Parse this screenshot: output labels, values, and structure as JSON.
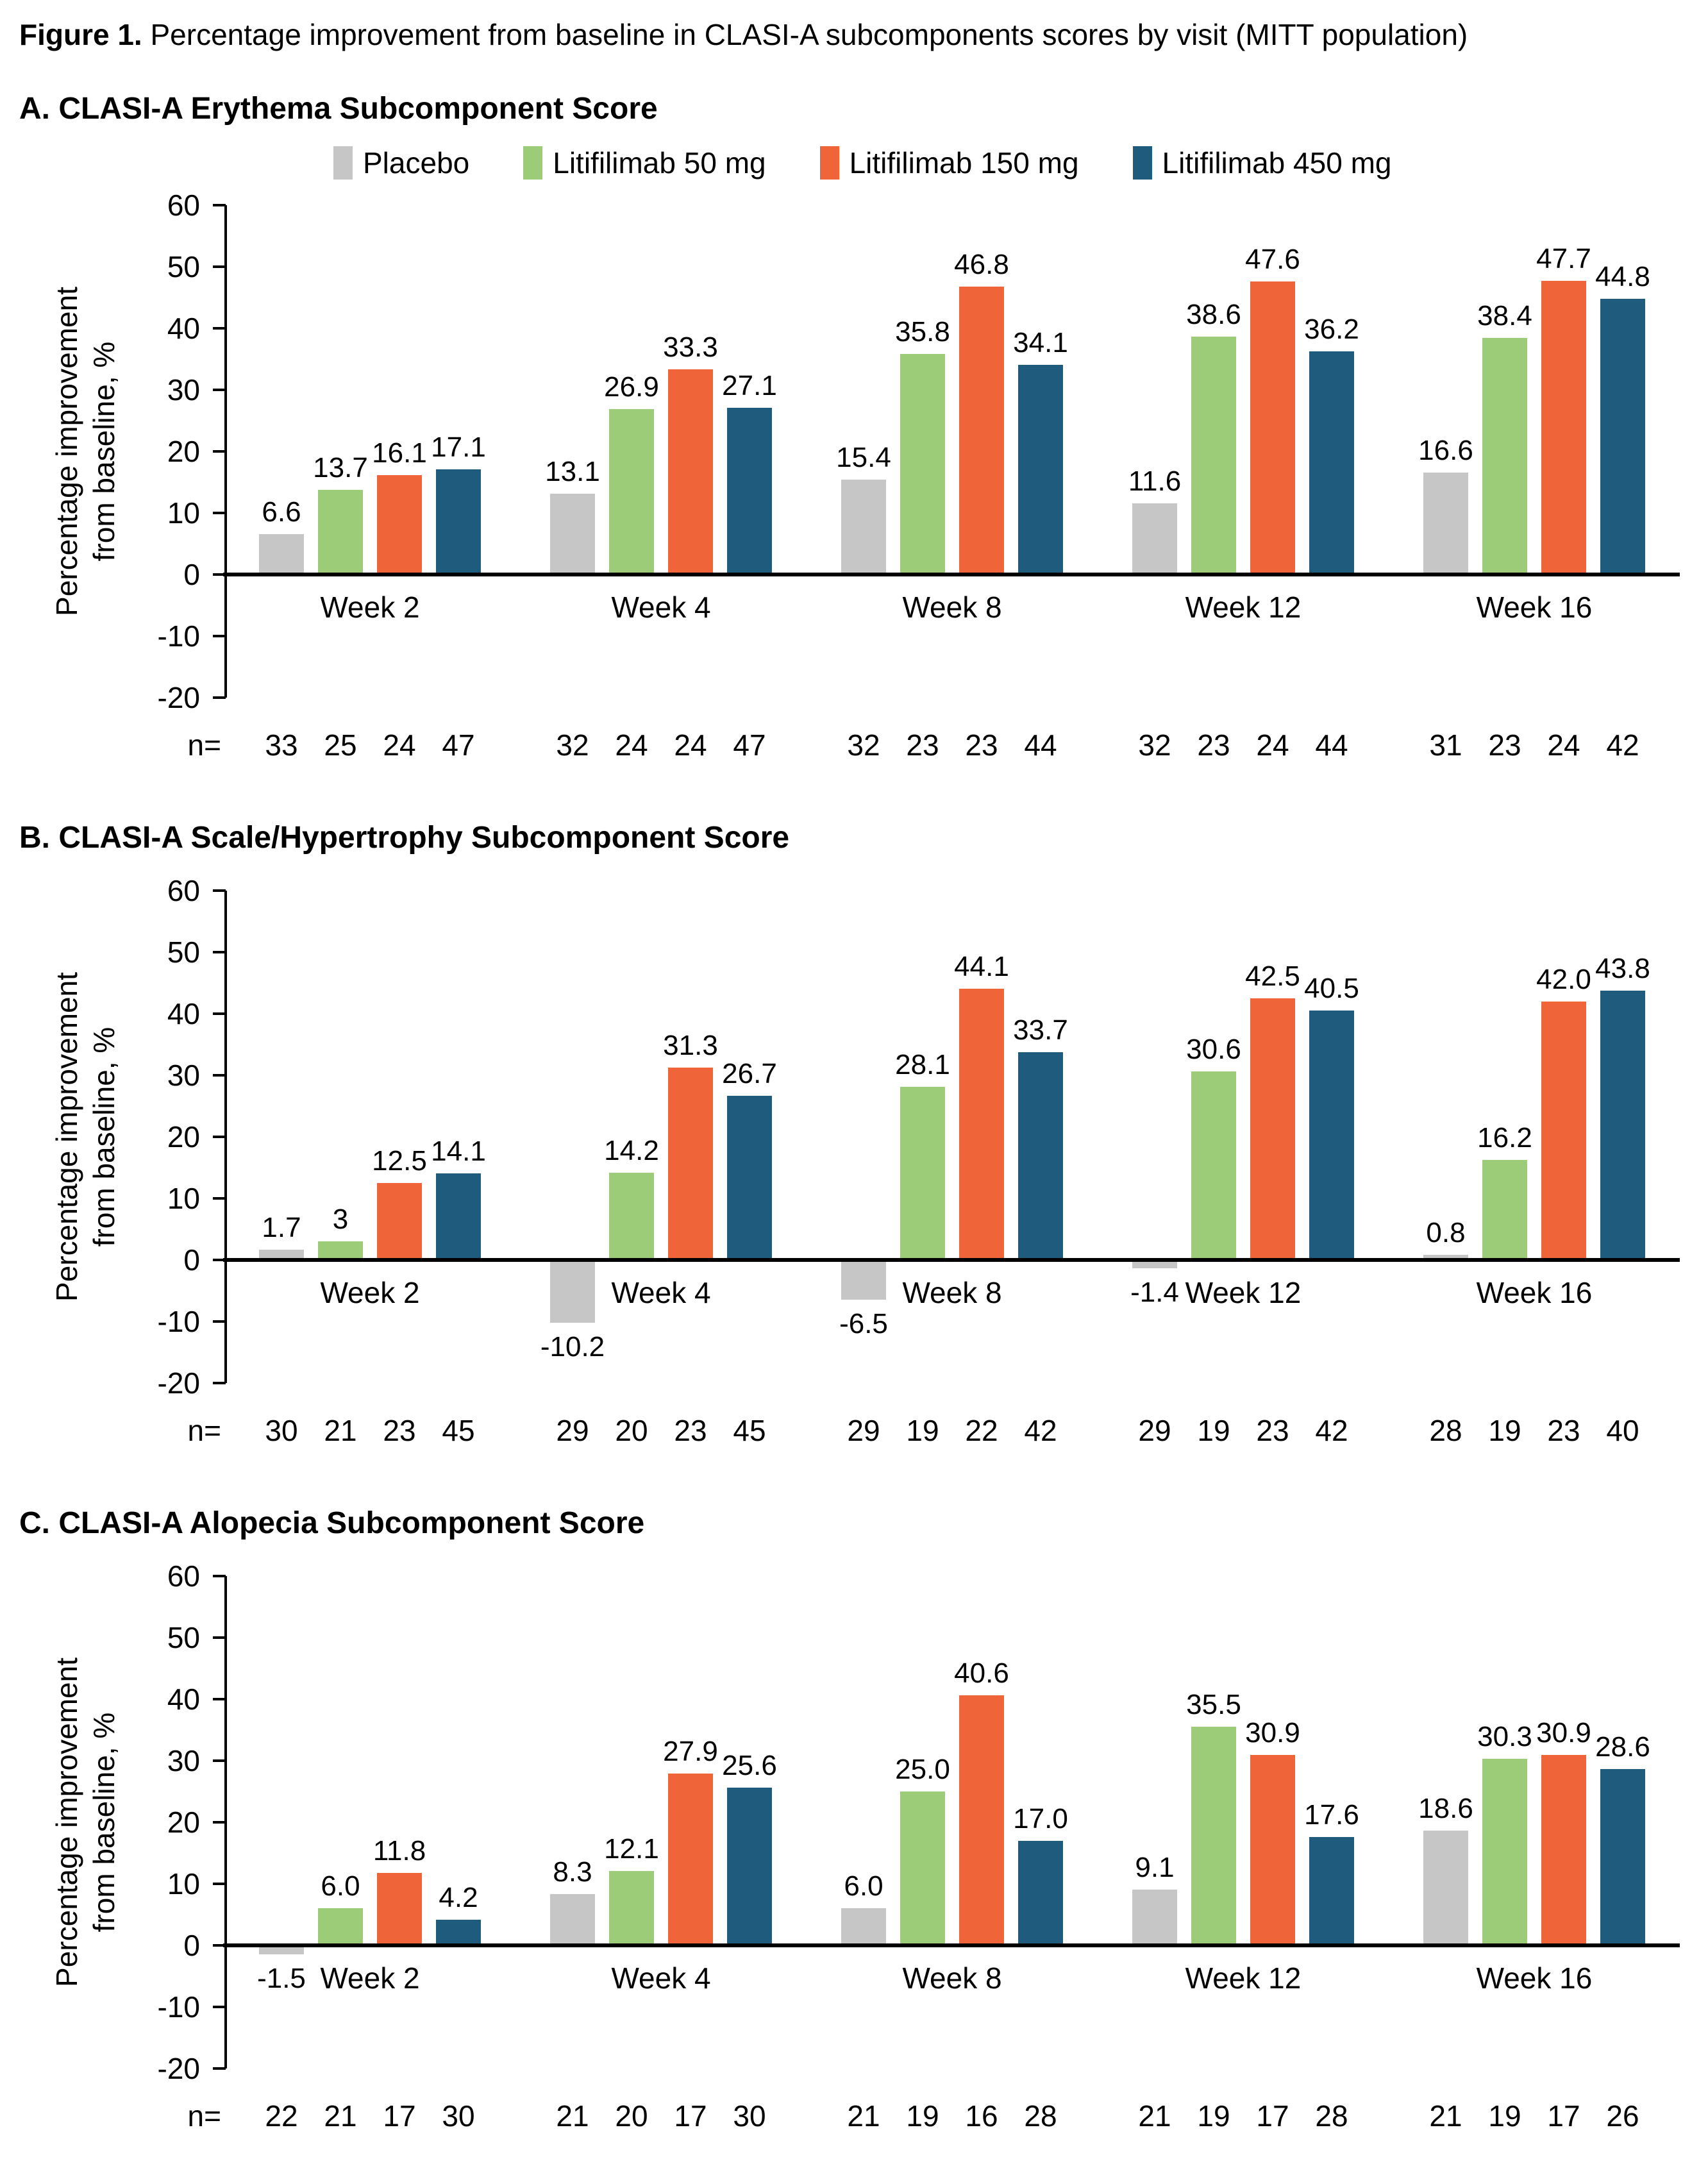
{
  "figure": {
    "title_prefix": "Figure 1.",
    "title_rest": " Percentage improvement from baseline in CLASI-A subcomponents scores by visit (MITT population)"
  },
  "legend": [
    {
      "label": "Placebo",
      "color": "#C6C6C6"
    },
    {
      "label": "Litifilimab 50 mg",
      "color": "#9CCC78"
    },
    {
      "label": "Litifilimab 150 mg",
      "color": "#EF6438"
    },
    {
      "label": "Litifilimab 450 mg",
      "color": "#1F5B7D"
    }
  ],
  "y_axis": {
    "label_line1": "Percentage improvement",
    "label_line2": "from baseline, %",
    "ticks": [
      60,
      50,
      40,
      30,
      20,
      10,
      0,
      -10,
      -20
    ],
    "max": 60,
    "min": -20,
    "grid": false
  },
  "n_prefix": "n=",
  "chart_data": [
    {
      "type": "bar",
      "title": "A. CLASI-A Erythema Subcomponent Score",
      "categories": [
        "Week 2",
        "Week 4",
        "Week 8",
        "Week 12",
        "Week 16"
      ],
      "ylim": [
        -20,
        60
      ],
      "legend_position": "top",
      "series": [
        {
          "name": "Placebo",
          "color": "#C6C6C6",
          "values": [
            6.6,
            13.1,
            15.4,
            11.6,
            16.6
          ],
          "labels": [
            "6.6",
            "13.1",
            "15.4",
            "11.6",
            "16.6"
          ]
        },
        {
          "name": "Litifilimab 50 mg",
          "color": "#9CCC78",
          "values": [
            13.7,
            26.9,
            35.8,
            38.6,
            38.4
          ],
          "labels": [
            "13.7",
            "26.9",
            "35.8",
            "38.6",
            "38.4"
          ]
        },
        {
          "name": "Litifilimab 150 mg",
          "color": "#EF6438",
          "values": [
            16.1,
            33.3,
            46.8,
            47.6,
            47.7
          ],
          "labels": [
            "16.1",
            "33.3",
            "46.8",
            "47.6",
            "47.7"
          ]
        },
        {
          "name": "Litifilimab 450 mg",
          "color": "#1F5B7D",
          "values": [
            17.1,
            27.1,
            34.1,
            36.2,
            44.8
          ],
          "labels": [
            "17.1",
            "27.1",
            "34.1",
            "36.2",
            "44.8"
          ]
        }
      ],
      "n": [
        [
          33,
          25,
          24,
          47
        ],
        [
          32,
          24,
          24,
          47
        ],
        [
          32,
          23,
          23,
          44
        ],
        [
          32,
          23,
          24,
          44
        ],
        [
          31,
          23,
          24,
          42
        ]
      ]
    },
    {
      "type": "bar",
      "title": "B. CLASI-A Scale/Hypertrophy Subcomponent Score",
      "categories": [
        "Week 2",
        "Week 4",
        "Week 8",
        "Week 12",
        "Week 16"
      ],
      "ylim": [
        -20,
        60
      ],
      "series": [
        {
          "name": "Placebo",
          "color": "#C6C6C6",
          "values": [
            1.7,
            -10.2,
            -6.5,
            -1.4,
            0.8
          ],
          "labels": [
            "1.7",
            "-10.2",
            "-6.5",
            "-1.4",
            "0.8"
          ]
        },
        {
          "name": "Litifilimab 50 mg",
          "color": "#9CCC78",
          "values": [
            3,
            14.2,
            28.1,
            30.6,
            16.2
          ],
          "labels": [
            "3",
            "14.2",
            "28.1",
            "30.6",
            "16.2"
          ]
        },
        {
          "name": "Litifilimab 150 mg",
          "color": "#EF6438",
          "values": [
            12.5,
            31.3,
            44.1,
            42.5,
            42.0
          ],
          "labels": [
            "12.5",
            "31.3",
            "44.1",
            "42.5",
            "42.0"
          ]
        },
        {
          "name": "Litifilimab 450 mg",
          "color": "#1F5B7D",
          "values": [
            14.1,
            26.7,
            33.7,
            40.5,
            43.8
          ],
          "labels": [
            "14.1",
            "26.7",
            "33.7",
            "40.5",
            "43.8"
          ]
        }
      ],
      "n": [
        [
          30,
          21,
          23,
          45
        ],
        [
          29,
          20,
          23,
          45
        ],
        [
          29,
          19,
          22,
          42
        ],
        [
          29,
          19,
          23,
          42
        ],
        [
          28,
          19,
          23,
          40
        ]
      ]
    },
    {
      "type": "bar",
      "title": "C. CLASI-A Alopecia Subcomponent Score",
      "categories": [
        "Week 2",
        "Week 4",
        "Week 8",
        "Week 12",
        "Week 16"
      ],
      "ylim": [
        -20,
        60
      ],
      "series": [
        {
          "name": "Placebo",
          "color": "#C6C6C6",
          "values": [
            -1.5,
            8.3,
            6.0,
            9.1,
            18.6
          ],
          "labels": [
            "-1.5",
            "8.3",
            "6.0",
            "9.1",
            "18.6"
          ]
        },
        {
          "name": "Litifilimab 50 mg",
          "color": "#9CCC78",
          "values": [
            6.0,
            12.1,
            25.0,
            35.5,
            30.3
          ],
          "labels": [
            "6.0",
            "12.1",
            "25.0",
            "35.5",
            "30.3"
          ]
        },
        {
          "name": "Litifilimab 150 mg",
          "color": "#EF6438",
          "values": [
            11.8,
            27.9,
            40.6,
            30.9,
            30.9
          ],
          "labels": [
            "11.8",
            "27.9",
            "40.6",
            "30.9",
            "30.9"
          ]
        },
        {
          "name": "Litifilimab 450 mg",
          "color": "#1F5B7D",
          "values": [
            4.2,
            25.6,
            17.0,
            17.6,
            28.6
          ],
          "labels": [
            "4.2",
            "25.6",
            "17.0",
            "17.6",
            "28.6"
          ]
        }
      ],
      "n": [
        [
          22,
          21,
          17,
          30
        ],
        [
          21,
          20,
          17,
          30
        ],
        [
          21,
          19,
          16,
          28
        ],
        [
          21,
          19,
          17,
          28
        ],
        [
          21,
          19,
          17,
          26
        ]
      ]
    }
  ]
}
